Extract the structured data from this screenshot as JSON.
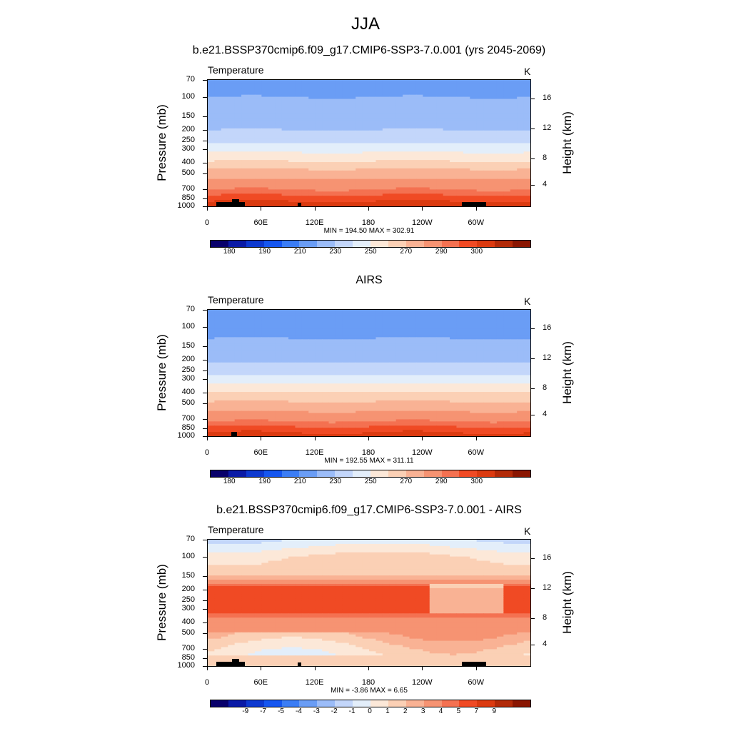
{
  "title": "JJA",
  "y_ticks": [
    "70",
    "100",
    "150",
    "200",
    "250",
    "300",
    "400",
    "500",
    "700",
    "850",
    "1000"
  ],
  "y_title": "Pressure (mb)",
  "right_ticks": [
    "16",
    "12",
    "8",
    "4"
  ],
  "right_title": "Height (km)",
  "x_ticks": [
    "0",
    "60E",
    "120E",
    "180",
    "120W",
    "60W"
  ],
  "colors": {
    "temperature_levels": [
      "#08006b",
      "#0a1aa6",
      "#0d39d0",
      "#1556f0",
      "#3b7df5",
      "#6a9df5",
      "#9bbcf8",
      "#c3d6fa",
      "#e3eefa",
      "#fce8d8",
      "#fbd0b5",
      "#f9b294",
      "#f69372",
      "#f47151",
      "#f04a24",
      "#db3a10",
      "#b22a08",
      "#8a1602"
    ],
    "difference_levels": [
      "#08006b",
      "#0a1aa6",
      "#0d39d0",
      "#1556f0",
      "#3b7df5",
      "#6a9df5",
      "#9bbcf8",
      "#c3d6fa",
      "#e3eefa",
      "#fce8d8",
      "#fbd0b5",
      "#f9b294",
      "#f69372",
      "#f47151",
      "#f04a24",
      "#db3a10",
      "#b22a08",
      "#8a1602"
    ]
  },
  "panels": [
    {
      "title": "b.e21.BSSP370cmip6.f09_g17.CMIP6-SSP3-7.0.001 (yrs 2045-2069)",
      "variable": "Temperature",
      "unit": "K",
      "stats": "MIN = 194.50  MAX = 302.91",
      "colorbar_labels": [
        "180",
        "190",
        "210",
        "230",
        "250",
        "270",
        "290",
        "300"
      ]
    },
    {
      "title": "AIRS",
      "variable": "Temperature",
      "unit": "K",
      "stats": "MIN = 192.55  MAX = 311.11",
      "colorbar_labels": [
        "180",
        "190",
        "210",
        "230",
        "250",
        "270",
        "290",
        "300"
      ]
    },
    {
      "title": "b.e21.BSSP370cmip6.f09_g17.CMIP6-SSP3-7.0.001 - AIRS",
      "variable": "Temperature",
      "unit": "K",
      "stats": "MIN =  -3.86  MAX =   6.65",
      "colorbar_labels": [
        "-9",
        "-7",
        "-5",
        "-4",
        "-3",
        "-2",
        "-1",
        "0",
        "1",
        "2",
        "3",
        "4",
        "5",
        "7",
        "9"
      ]
    }
  ],
  "chart_data": [
    {
      "type": "heatmap",
      "title": "b.e21.BSSP370cmip6.f09_g17.CMIP6-SSP3-7.0.001 (yrs 2045-2069)",
      "variable": "Temperature",
      "unit": "K",
      "x_axis": "longitude",
      "y_axis": "pressure (mb)",
      "y_scale": "log",
      "y_range": [
        1000,
        70
      ],
      "min": 194.5,
      "max": 302.91,
      "pressure_levels": [
        70,
        100,
        150,
        200,
        250,
        300,
        400,
        500,
        700,
        850,
        1000
      ],
      "zonal_mean_temperature": [
        205,
        210,
        215,
        220,
        228,
        236,
        252,
        265,
        280,
        288,
        294
      ]
    },
    {
      "type": "heatmap",
      "title": "AIRS",
      "variable": "Temperature",
      "unit": "K",
      "x_axis": "longitude",
      "y_axis": "pressure (mb)",
      "y_scale": "log",
      "y_range": [
        1000,
        70
      ],
      "min": 192.55,
      "max": 311.11,
      "pressure_levels": [
        70,
        100,
        150,
        200,
        250,
        300,
        400,
        500,
        700,
        850,
        1000
      ],
      "zonal_mean_temperature": [
        200,
        207,
        212,
        218,
        226,
        234,
        250,
        262,
        278,
        287,
        293
      ]
    },
    {
      "type": "heatmap",
      "title": "b.e21.BSSP370cmip6.f09_g17.CMIP6-SSP3-7.0.001 - AIRS",
      "variable": "Temperature",
      "unit": "K",
      "x_axis": "longitude",
      "y_axis": "pressure (mb)",
      "y_scale": "log",
      "y_range": [
        1000,
        70
      ],
      "min": -3.86,
      "max": 6.65,
      "pressure_levels": [
        70,
        100,
        150,
        200,
        250,
        300,
        400,
        500,
        700,
        850,
        1000
      ],
      "zonal_mean_difference": [
        -1,
        1,
        2,
        5,
        5.5,
        5,
        3.5,
        3,
        1.5,
        1,
        2
      ]
    }
  ]
}
